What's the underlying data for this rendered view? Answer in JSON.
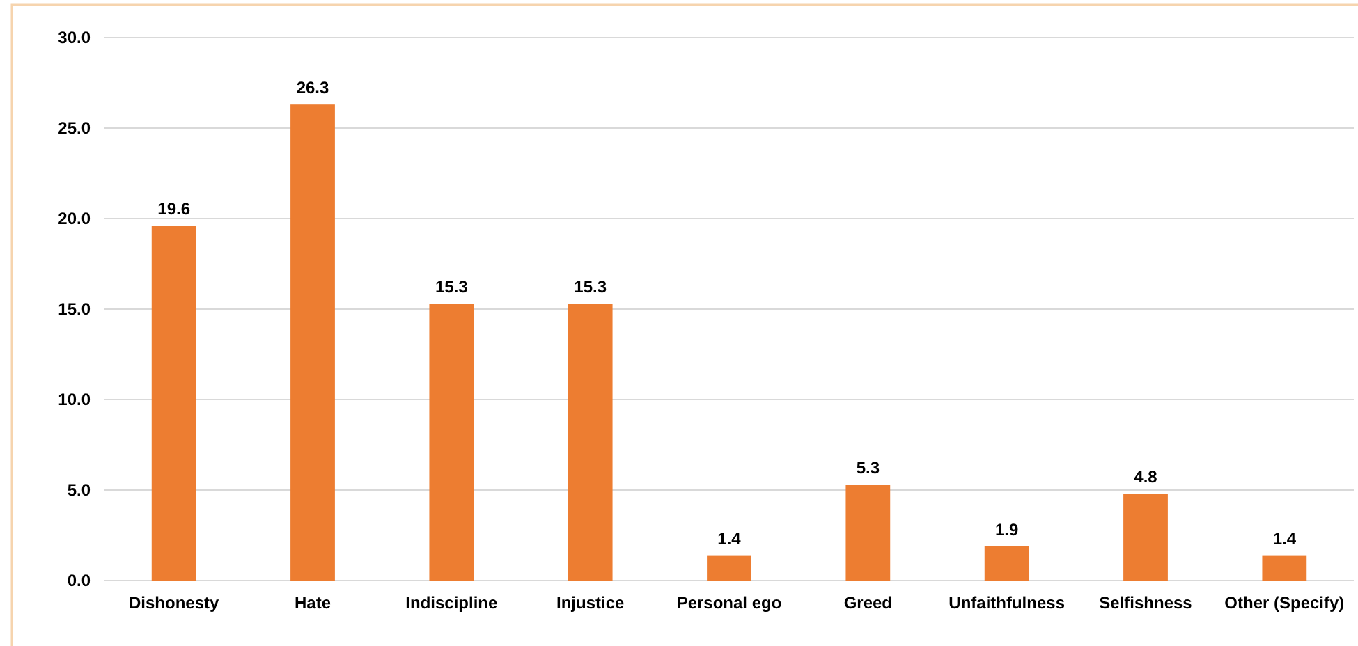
{
  "chart_data": {
    "type": "bar",
    "categories": [
      "Dishonesty",
      "Hate",
      "Indiscipline",
      "Injustice",
      "Personal ego",
      "Greed",
      "Unfaithfulness",
      "Selfishness",
      "Other (Specify)"
    ],
    "values": [
      19.6,
      26.3,
      15.3,
      15.3,
      1.4,
      5.3,
      1.9,
      4.8,
      1.4
    ],
    "color": "#ed7d31",
    "ylim": [
      0,
      30
    ],
    "yticks": [
      {
        "value": 0,
        "label": "0.0"
      },
      {
        "value": 5,
        "label": "5.0"
      },
      {
        "value": 10,
        "label": "10.0"
      },
      {
        "value": 15,
        "label": "15.0"
      },
      {
        "value": 20,
        "label": "20.0"
      },
      {
        "value": 25,
        "label": "25.0"
      },
      {
        "value": 30,
        "label": "30.0"
      }
    ],
    "grid": "y",
    "data_labels": true
  }
}
